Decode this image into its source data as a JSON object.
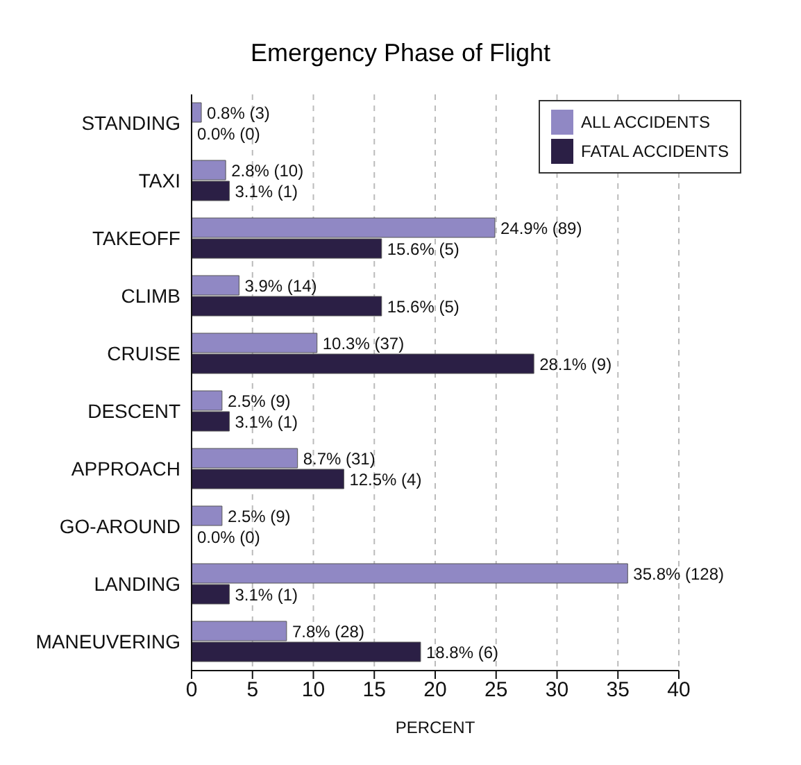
{
  "chart_data": {
    "type": "bar",
    "orientation": "horizontal",
    "title": "Emergency Phase of Flight",
    "xlabel": "PERCENT",
    "categories": [
      "STANDING",
      "TAXI",
      "TAKEOFF",
      "CLIMB",
      "CRUISE",
      "DESCENT",
      "APPROACH",
      "GO-AROUND",
      "LANDING",
      "MANEUVERING"
    ],
    "series": [
      {
        "name": "ALL ACCIDENTS",
        "color": "#9088c4",
        "values": [
          0.8,
          2.8,
          24.9,
          3.9,
          10.3,
          2.5,
          8.7,
          2.5,
          35.8,
          7.8
        ],
        "value_labels": [
          "0.8% (3)",
          "2.8% (10)",
          "24.9% (89)",
          "3.9% (14)",
          "10.3% (37)",
          "2.5% (9)",
          "8.7% (31)",
          "2.5% (9)",
          "35.8% (128)",
          "7.8% (28)"
        ]
      },
      {
        "name": "FATAL ACCIDENTS",
        "color": "#2b1f45",
        "values": [
          0,
          3.1,
          15.6,
          15.6,
          28.1,
          3.1,
          12.5,
          0,
          3.1,
          18.8
        ],
        "value_labels": [
          "0.0% (0)",
          "3.1% (1)",
          "15.6% (5)",
          "15.6% (5)",
          "28.1% (9)",
          "3.1% (1)",
          "12.5% (4)",
          "0.0% (0)",
          "3.1% (1)",
          "18.8% (6)"
        ]
      }
    ],
    "xlim": [
      0,
      40
    ],
    "xticks": [
      0,
      5,
      10,
      15,
      20,
      25,
      30,
      35,
      40
    ],
    "grid": "x",
    "legend": "top right"
  }
}
